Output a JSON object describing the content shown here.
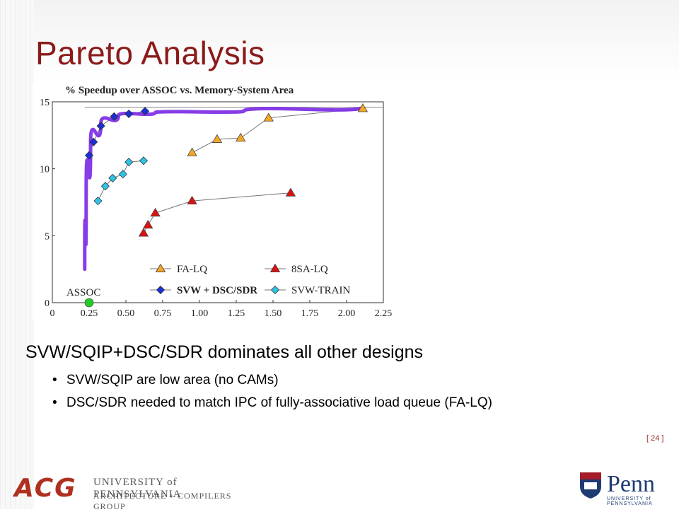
{
  "slide": {
    "title": "Pareto Analysis",
    "slide_number": "[ 24 ]"
  },
  "bullets": {
    "main": "SVW/SQIP+DSC/SDR dominates all other designs",
    "subs": [
      "SVW/SQIP are low area (no CAMs)",
      "DSC/SDR needed to match IPC of fully-associative load queue (FA-LQ)"
    ]
  },
  "footer": {
    "logo_text": "ACG",
    "university": "UNIVERSITY of PENNSYLVANIA",
    "group": "ARCHITECTURE + COMPILERS GROUP",
    "penn_logo": "Penn",
    "penn_sub": "UNIVERSITY of PENNSYLVANIA"
  },
  "chart_data": {
    "type": "line",
    "title": "% Speedup over ASSOC vs. Memory-System Area",
    "xlim": [
      0,
      2.25
    ],
    "ylim": [
      0,
      15
    ],
    "x_ticks": [
      "0",
      "0.25",
      "0.50",
      "0.75",
      "1.00",
      "1.25",
      "1.50",
      "1.75",
      "2.00",
      "2.25"
    ],
    "y_ticks": [
      "0",
      "5",
      "10",
      "15"
    ],
    "legend_position": "bottom-right",
    "series": [
      {
        "name": "FA-LQ",
        "marker": "triangle",
        "color": "#f5a623",
        "points": [
          [
            0.95,
            11.2
          ],
          [
            1.12,
            12.2
          ],
          [
            1.28,
            12.3
          ],
          [
            1.47,
            13.8
          ],
          [
            2.11,
            14.5
          ]
        ]
      },
      {
        "name": "8SA-LQ",
        "marker": "triangle",
        "color": "#dd1111",
        "points": [
          [
            0.62,
            5.2
          ],
          [
            0.65,
            5.8
          ],
          [
            0.7,
            6.7
          ],
          [
            0.95,
            7.6
          ],
          [
            1.62,
            8.2
          ]
        ]
      },
      {
        "name": "SVW + DSC/SDR",
        "marker": "diamond",
        "color": "#1a2fd6",
        "points": [
          [
            0.25,
            11.0
          ],
          [
            0.28,
            12.0
          ],
          [
            0.33,
            13.2
          ],
          [
            0.42,
            13.9
          ],
          [
            0.52,
            14.1
          ],
          [
            0.63,
            14.3
          ]
        ]
      },
      {
        "name": "SVW-TRAIN",
        "marker": "diamond",
        "color": "#2ec4e8",
        "points": [
          [
            0.31,
            7.6
          ],
          [
            0.36,
            8.7
          ],
          [
            0.41,
            9.3
          ],
          [
            0.48,
            9.6
          ],
          [
            0.52,
            10.5
          ],
          [
            0.62,
            10.6
          ]
        ]
      }
    ],
    "pareto_frontier": {
      "color": "#7f33e6",
      "points": [
        [
          0.22,
          2.5
        ],
        [
          0.23,
          8.0
        ],
        [
          0.26,
          12.0
        ],
        [
          0.33,
          13.4
        ],
        [
          0.45,
          14.0
        ],
        [
          0.7,
          14.2
        ],
        [
          1.3,
          14.3
        ],
        [
          2.11,
          14.6
        ]
      ]
    },
    "reference_line": {
      "color": "#888888",
      "points": [
        [
          0.22,
          14.6
        ],
        [
          2.25,
          14.6
        ]
      ]
    },
    "annotations": [
      {
        "text": "ASSOC",
        "x": 0.27,
        "y": 0.0
      }
    ],
    "assoc_point": {
      "x": 0.25,
      "y": 0.0,
      "color": "#22cc22"
    }
  }
}
